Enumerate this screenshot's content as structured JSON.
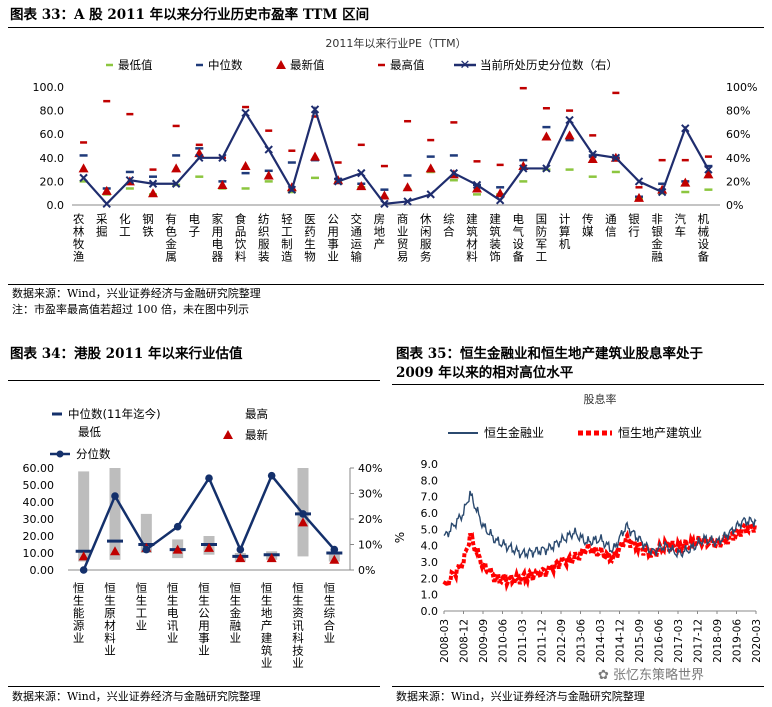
{
  "fig33": {
    "title": "图表 33：A 股 2011 年以来分行业历史市盈率  TTM 区间",
    "source": "数据来源：Wind，兴业证券经济与金融研究院整理",
    "note": "注：市盈率最高值若超过 100 倍，未在图中列示"
  },
  "fig34": {
    "title": "图表 34：港股 2011 年以来行业估值",
    "source": "数据来源：Wind，兴业证券经济与金融研究院整理"
  },
  "fig35": {
    "title_line1": "图表 35：恒生金融业和恒生地产建筑业股息率处于",
    "title_line2": "2009 年以来的相对高位水平",
    "source": "数据来源：Wind，兴业证券经济与金融研究院整理"
  },
  "watermark": "张忆东策略世界",
  "chart_data": [
    {
      "type": "line",
      "title": "2011年以来行业PE（TTM）",
      "legend": [
        "最低值",
        "中位数",
        "最新值",
        "最高值",
        "当前所处历史分位数（右）"
      ],
      "ylim": [
        0,
        100
      ],
      "yticks": [
        "0.0",
        "20.0",
        "40.0",
        "60.0",
        "80.0",
        "100.0"
      ],
      "y2lim": [
        0,
        100
      ],
      "y2ticks": [
        "0%",
        "20%",
        "40%",
        "60%",
        "80%",
        "100%"
      ],
      "categories": [
        "农林牧渔",
        "采掘",
        "化工",
        "钢铁",
        "有色金属",
        "电子",
        "家用电器",
        "食品饮料",
        "纺织服装",
        "轻工制造",
        "医药生物",
        "公用事业",
        "交通运输",
        "房地产",
        "商业贸易",
        "休闲服务",
        "综合",
        "建筑材料",
        "建筑装饰",
        "电气设备",
        "国防军工",
        "计算机",
        "传媒",
        "通信",
        "银行",
        "非银金融",
        "汽车",
        "机械设备"
      ],
      "series": [
        {
          "name": "最低值",
          "values": [
            20,
            9,
            14,
            9,
            17,
            24,
            14,
            14,
            20,
            11,
            23,
            19,
            15,
            6,
            13,
            28,
            21,
            9,
            9,
            20,
            30,
            30,
            24,
            28,
            5,
            10,
            11,
            13
          ]
        },
        {
          "name": "中位数",
          "values": [
            42,
            14,
            28,
            24,
            42,
            48,
            20,
            27,
            29,
            36,
            38,
            22,
            18,
            13,
            25,
            41,
            42,
            17,
            15,
            38,
            66,
            55,
            42,
            40,
            7,
            18,
            20,
            33
          ]
        },
        {
          "name": "最新值",
          "values": [
            31,
            12,
            20,
            10,
            31,
            44,
            17,
            33,
            25,
            15,
            41,
            21,
            16,
            8,
            15,
            31,
            26,
            14,
            10,
            33,
            58,
            59,
            39,
            40,
            6,
            13,
            19,
            26
          ]
        },
        {
          "name": "最高值",
          "values": [
            53,
            88,
            77,
            30,
            67,
            51,
            40,
            83,
            63,
            46,
            75,
            36,
            51,
            33,
            71,
            55,
            70,
            37,
            34,
            99,
            82,
            80,
            59,
            95,
            15,
            38,
            38,
            41
          ]
        },
        {
          "name": "当前所处历史分位数（右）",
          "values": [
            23,
            1,
            21,
            18,
            18,
            40,
            40,
            78,
            47,
            13,
            81,
            20,
            27,
            1,
            3,
            9,
            27,
            17,
            4,
            31,
            31,
            72,
            43,
            40,
            20,
            11,
            65,
            30
          ]
        }
      ]
    },
    {
      "type": "bar",
      "legend": [
        "中位数(11年迄今)",
        "最高",
        "最低",
        "最新",
        "分位数"
      ],
      "ylim": [
        0,
        60
      ],
      "yticks": [
        "0.00",
        "10.00",
        "20.00",
        "30.00",
        "40.00",
        "50.00",
        "60.00"
      ],
      "y2lim": [
        0,
        40
      ],
      "y2ticks": [
        "0%",
        "10%",
        "20%",
        "30%",
        "40%"
      ],
      "categories": [
        "恒生能源业",
        "恒生原材料业",
        "恒生工业",
        "恒生电讯业",
        "恒生公用事业",
        "恒生金融业",
        "恒生地产建筑业",
        "恒生资讯科技业",
        "恒生综合业"
      ],
      "series": [
        {
          "name": "最低",
          "values": [
            5,
            6,
            10,
            7,
            9,
            5,
            6,
            8,
            5
          ]
        },
        {
          "name": "最高",
          "values": [
            58,
            60,
            33,
            18,
            20,
            10,
            11,
            60,
            10
          ]
        },
        {
          "name": "中位数(11年迄今)",
          "values": [
            11,
            17,
            15,
            12,
            15,
            8,
            9,
            33,
            10
          ]
        },
        {
          "name": "最新",
          "values": [
            8,
            11,
            13,
            12,
            13,
            7,
            7,
            28,
            6
          ]
        },
        {
          "name": "分位数",
          "values": [
            0,
            29,
            8,
            17,
            36,
            8,
            37,
            22,
            8
          ]
        }
      ]
    },
    {
      "type": "line",
      "title": "股息率",
      "ylabel": "%",
      "ylim": [
        0,
        9
      ],
      "yticks": [
        "0.0",
        "1.0",
        "2.0",
        "3.0",
        "4.0",
        "5.0",
        "6.0",
        "7.0",
        "8.0",
        "9.0"
      ],
      "xticks": [
        "2008-03",
        "2008-12",
        "2009-09",
        "2010-06",
        "2011-03",
        "2011-12",
        "2012-09",
        "2013-06",
        "2014-03",
        "2014-12",
        "2015-09",
        "2016-06",
        "2017-03",
        "2017-12",
        "2018-09",
        "2019-06",
        "2020-03"
      ],
      "x_anchor_months": [
        0,
        9,
        12,
        18,
        24,
        30,
        36,
        48,
        54,
        60,
        66,
        72,
        78,
        84,
        90,
        96,
        102,
        108,
        114,
        120,
        126,
        132,
        138,
        144
      ],
      "series": [
        {
          "name": "恒生金融业",
          "values": [
            4.5,
            6.0,
            7.2,
            5.2,
            4.3,
            3.9,
            3.5,
            3.8,
            4.3,
            4.8,
            4.2,
            4.4,
            3.7,
            5.2,
            4.4,
            3.6,
            4.0,
            3.5,
            3.8,
            4.4,
            4.2,
            4.8,
            5.5,
            5.5
          ]
        },
        {
          "name": "恒生地产建筑业",
          "values": [
            1.5,
            3.0,
            4.6,
            2.8,
            2.0,
            1.9,
            2.0,
            2.5,
            3.0,
            3.2,
            3.8,
            3.6,
            3.2,
            4.4,
            3.9,
            3.5,
            4.0,
            3.9,
            4.1,
            4.3,
            4.1,
            4.5,
            5.0,
            5.2
          ]
        }
      ]
    }
  ]
}
